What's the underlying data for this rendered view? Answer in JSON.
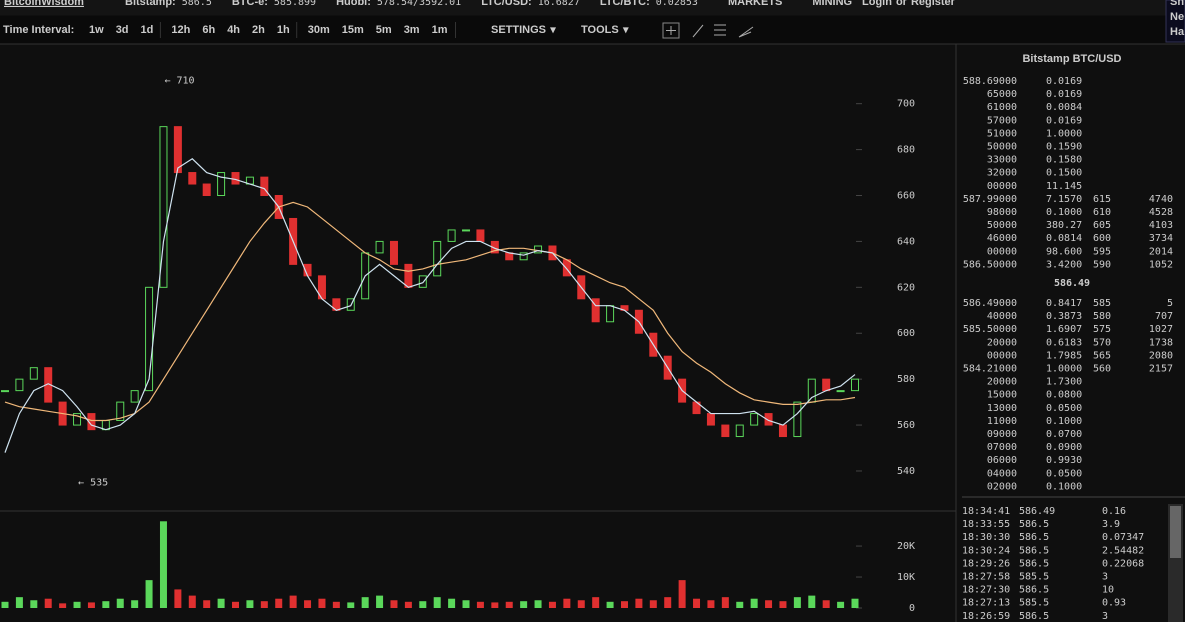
{
  "header": {
    "logo": "BitcoinWisdom",
    "tickers": [
      {
        "label": "Bitstamp:",
        "value": "586.5"
      },
      {
        "label": "BTC-e:",
        "value": "585.899"
      },
      {
        "label": "Huobi:",
        "value": "578.54/3592.01"
      },
      {
        "label": "LTC/USD:",
        "value": "16.6827"
      },
      {
        "label": "LTC/BTC:",
        "value": "0.02853"
      }
    ],
    "menus": [
      "MARKETS",
      "MINING"
    ],
    "login": "Login",
    "or": "or",
    "register": "Register",
    "side": [
      "Sn",
      "Ne",
      "Ha"
    ]
  },
  "toolbar": {
    "label": "Time Interval:",
    "intervals": [
      "1w",
      "3d",
      "1d",
      "12h",
      "6h",
      "4h",
      "2h",
      "1h",
      "30m",
      "15m",
      "5m",
      "3m",
      "1m"
    ],
    "active_interval": 5,
    "settings": "SETTINGS",
    "tools": "TOOLS"
  },
  "chart_data": {
    "type": "candlestick",
    "close": [
      575,
      580,
      585,
      570,
      560,
      565,
      558,
      562,
      570,
      575,
      620,
      690,
      670,
      665,
      660,
      670,
      665,
      668,
      660,
      650,
      630,
      625,
      615,
      610,
      615,
      635,
      640,
      630,
      620,
      625,
      640,
      645,
      645,
      640,
      635,
      632,
      635,
      638,
      632,
      625,
      615,
      605,
      612,
      610,
      600,
      590,
      580,
      570,
      565,
      560,
      555,
      560,
      565,
      560,
      555,
      570,
      580,
      575,
      575,
      580
    ],
    "ma_fast": {
      "color": "#cfe3f0",
      "values": [
        548,
        565,
        575,
        578,
        575,
        568,
        560,
        558,
        560,
        565,
        580,
        640,
        672,
        676,
        670,
        668,
        667,
        665,
        663,
        655,
        640,
        625,
        615,
        610,
        612,
        625,
        630,
        625,
        620,
        622,
        630,
        637,
        640,
        640,
        637,
        635,
        634,
        636,
        635,
        628,
        620,
        612,
        612,
        610,
        605,
        595,
        585,
        575,
        570,
        565,
        565,
        565,
        566,
        562,
        560,
        565,
        572,
        575,
        577,
        582
      ]
    },
    "ma_slow": {
      "color": "#f0b87a",
      "values": [
        570,
        568,
        567,
        566,
        565,
        564,
        562,
        562,
        563,
        565,
        570,
        580,
        590,
        600,
        610,
        620,
        630,
        640,
        648,
        655,
        657,
        655,
        650,
        645,
        640,
        635,
        632,
        628,
        627,
        628,
        630,
        631,
        632,
        634,
        636,
        637,
        637,
        636,
        635,
        632,
        628,
        625,
        622,
        620,
        615,
        610,
        600,
        592,
        587,
        583,
        578,
        574,
        571,
        570,
        569,
        569,
        570,
        571,
        571,
        572
      ]
    },
    "volume": [
      2000,
      3500,
      2500,
      3000,
      1500,
      2000,
      1800,
      2200,
      3000,
      2500,
      9000,
      28000,
      6000,
      4000,
      2500,
      3000,
      2000,
      2500,
      2200,
      3000,
      4000,
      2500,
      3000,
      2000,
      1800,
      3500,
      4000,
      2500,
      2000,
      2200,
      3500,
      3000,
      2500,
      2000,
      1800,
      2000,
      2200,
      2500,
      2000,
      3000,
      2500,
      3500,
      2000,
      2200,
      3000,
      2500,
      3500,
      9000,
      3000,
      2500,
      3500,
      2000,
      3000,
      2500,
      2200,
      3500,
      4000,
      2500,
      2000,
      3000
    ],
    "up_color": "#5bd85b",
    "down_color": "#e03030",
    "ylim": [
      523,
      726
    ],
    "yticks": [
      540,
      560,
      580,
      600,
      620,
      640,
      660,
      680,
      700
    ],
    "vlim": [
      0,
      31000
    ],
    "vticks": [
      0,
      {
        "value": 10000,
        "label": "10K"
      },
      {
        "value": 20000,
        "label": "20K"
      }
    ],
    "annotations": [
      {
        "text": "← 710",
        "at": 11,
        "value": 710
      },
      {
        "text": "← 535",
        "at": 5,
        "value": 535
      }
    ]
  },
  "orderbook": {
    "title": "Bitstamp BTC/USD",
    "asks": [
      [
        "588.69000",
        "0.0169"
      ],
      [
        "65000",
        "0.0169"
      ],
      [
        "61000",
        "0.0084"
      ],
      [
        "57000",
        "0.0169"
      ],
      [
        "51000",
        "1.0000"
      ],
      [
        "50000",
        "0.1590"
      ],
      [
        "33000",
        "0.1580"
      ],
      [
        "32000",
        "0.1500"
      ],
      [
        "00000",
        "11.145"
      ],
      [
        "587.99000",
        "7.1570",
        "615",
        "4740"
      ],
      [
        "98000",
        "0.1000",
        "610",
        "4528"
      ],
      [
        "50000",
        "380.27",
        "605",
        "4103"
      ],
      [
        "46000",
        "0.0814",
        "600",
        "3734"
      ],
      [
        "00000",
        "98.600",
        "595",
        "2014"
      ],
      [
        "586.50000",
        "3.4200",
        "590",
        "1052"
      ]
    ],
    "last": "586.49",
    "bids": [
      [
        "586.49000",
        "0.8417",
        "585",
        "5"
      ],
      [
        "40000",
        "0.3873",
        "580",
        "707"
      ],
      [
        "585.50000",
        "1.6907",
        "575",
        "1027"
      ],
      [
        "20000",
        "0.6183",
        "570",
        "1738"
      ],
      [
        "00000",
        "1.7985",
        "565",
        "2080"
      ],
      [
        "584.21000",
        "1.0000",
        "560",
        "2157"
      ],
      [
        "20000",
        "1.7300"
      ],
      [
        "15000",
        "0.0800"
      ],
      [
        "13000",
        "0.0500"
      ],
      [
        "11000",
        "0.1000"
      ],
      [
        "09000",
        "0.0700"
      ],
      [
        "07000",
        "0.0900"
      ],
      [
        "06000",
        "0.9930"
      ],
      [
        "04000",
        "0.0500"
      ],
      [
        "02000",
        "0.1000"
      ]
    ]
  },
  "trades": [
    [
      "18:34:41",
      "586.49",
      "0.16",
      "up"
    ],
    [
      "18:33:55",
      "586.5",
      "3.9",
      "up"
    ],
    [
      "18:30:30",
      "586.5",
      "0.07347",
      "up"
    ],
    [
      "18:30:24",
      "586.5",
      "2.54482",
      "up"
    ],
    [
      "18:29:26",
      "586.5",
      "0.22068",
      "up"
    ],
    [
      "18:27:58",
      "585.5",
      "3",
      "down"
    ],
    [
      "18:27:30",
      "586.5",
      "10",
      "up"
    ],
    [
      "18:27:13",
      "585.5",
      "0.93",
      "down"
    ],
    [
      "18:26:59",
      "586.5",
      "3",
      "up"
    ]
  ]
}
